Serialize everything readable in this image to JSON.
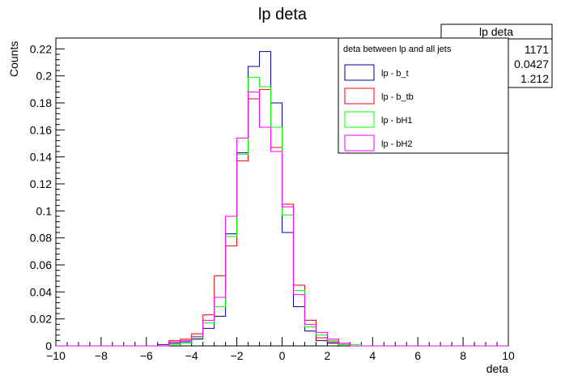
{
  "chart_data": {
    "type": "histogram",
    "title": "lp deta",
    "xlabel": "deta",
    "ylabel": "Counts",
    "xlim": [
      -10,
      10
    ],
    "ylim": [
      0,
      0.228
    ],
    "x_ticks": [
      -10,
      -8,
      -6,
      -4,
      -2,
      0,
      2,
      4,
      6,
      8,
      10
    ],
    "y_ticks": [
      0,
      0.02,
      0.04,
      0.06,
      0.08,
      0.1,
      0.12,
      0.14,
      0.16,
      0.18,
      0.2,
      0.22
    ],
    "bin_edges": [
      -5.5,
      -5,
      -4.5,
      -4,
      -3.5,
      -3,
      -2.5,
      -2,
      -1.5,
      -1,
      -0.5,
      0,
      0.5,
      1,
      1.5,
      2,
      2.5,
      3,
      3.5,
      4,
      4.5,
      5,
      5.5
    ],
    "legend": {
      "header": "deta between lp and all jets",
      "position": "top-right"
    },
    "series": [
      {
        "name": "lp - b_t",
        "color": "#000099",
        "values": [
          0.001,
          0.002,
          0.003,
          0.005,
          0.013,
          0.022,
          0.083,
          0.143,
          0.207,
          0.218,
          0.18,
          0.084,
          0.029,
          0.011,
          0.004,
          0.002,
          0.001,
          0.0,
          0.0,
          0.0,
          0.0,
          0.0
        ]
      },
      {
        "name": "lp - b_tb",
        "color": "#ff0000",
        "values": [
          0.0,
          0.004,
          0.005,
          0.009,
          0.023,
          0.052,
          0.074,
          0.137,
          0.183,
          0.19,
          0.147,
          0.105,
          0.045,
          0.019,
          0.006,
          0.003,
          0.001,
          0.0,
          0.0,
          0.0,
          0.0,
          0.0
        ]
      },
      {
        "name": "lp - bH1",
        "color": "#00ff00",
        "values": [
          0.0,
          0.001,
          0.002,
          0.006,
          0.017,
          0.029,
          0.081,
          0.142,
          0.199,
          0.192,
          0.162,
          0.097,
          0.041,
          0.014,
          0.008,
          0.004,
          0.001,
          0.001,
          0.0,
          0.0,
          0.0,
          0.0
        ]
      },
      {
        "name": "lp - bH2",
        "color": "#ff00ff",
        "values": [
          0.0,
          0.003,
          0.004,
          0.007,
          0.019,
          0.036,
          0.096,
          0.154,
          0.188,
          0.162,
          0.144,
          0.103,
          0.038,
          0.016,
          0.01,
          0.005,
          0.002,
          0.0,
          0.0,
          0.0,
          0.0,
          0.0
        ]
      }
    ]
  },
  "stats_box": {
    "title": "lp deta",
    "values": [
      "1171",
      "0.0427",
      "1.212"
    ]
  }
}
